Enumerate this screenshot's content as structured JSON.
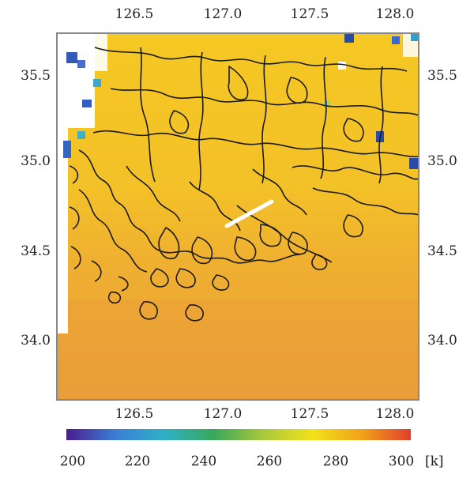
{
  "map": {
    "lon_ticks": [
      "126.5",
      "127.0",
      "127.5",
      "128.0"
    ],
    "lat_ticks": [
      "35.5",
      "35.0",
      "34.5",
      "34.0"
    ]
  },
  "colorbar": {
    "ticks": [
      "200",
      "220",
      "240",
      "260",
      "280",
      "300"
    ],
    "unit": "[k]",
    "colors": [
      "#4b1c8e",
      "#3a7fd6",
      "#2fb0c4",
      "#3aa85a",
      "#a8c83a",
      "#f2e21a",
      "#f2a21a",
      "#e0402a"
    ]
  },
  "field": {
    "north_color": "#f5c823",
    "south_color": "#eb9f3a",
    "coastline_color": "#1a1a1a"
  }
}
